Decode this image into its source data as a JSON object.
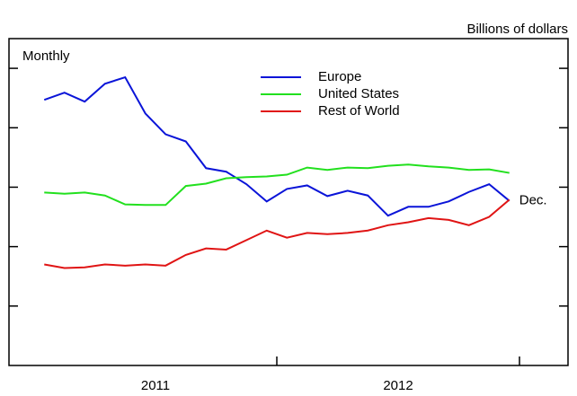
{
  "chart_data": {
    "type": "line",
    "unit_label": "Billions of dollars",
    "frequency_label": "Monthly",
    "categories": [
      null,
      null,
      null,
      null,
      null,
      null,
      null,
      null,
      null,
      null,
      null,
      null,
      null,
      null,
      null,
      null,
      null,
      null,
      null,
      null,
      null,
      null,
      null,
      null
    ],
    "year_labels": [
      "2011",
      "2012"
    ],
    "end_label": "Dec.",
    "series": [
      {
        "name": "Europe",
        "color": "#0a14d8",
        "values": [
          4.47,
          4.59,
          4.44,
          4.74,
          4.85,
          4.24,
          3.89,
          3.77,
          3.32,
          3.26,
          3.05,
          2.76,
          2.97,
          3.03,
          2.85,
          2.94,
          2.86,
          2.52,
          2.67,
          2.67,
          2.76,
          2.92,
          3.05,
          2.77
        ]
      },
      {
        "name": "United States",
        "color": "#22e01e",
        "values": [
          2.91,
          2.89,
          2.91,
          2.86,
          2.71,
          2.7,
          2.7,
          3.02,
          3.06,
          3.15,
          3.17,
          3.18,
          3.21,
          3.33,
          3.29,
          3.33,
          3.32,
          3.36,
          3.38,
          3.35,
          3.33,
          3.29,
          3.3,
          3.24
        ]
      },
      {
        "name": "Rest of World",
        "color": "#e01414",
        "values": [
          1.7,
          1.64,
          1.65,
          1.7,
          1.68,
          1.7,
          1.68,
          1.86,
          1.97,
          1.95,
          2.11,
          2.27,
          2.15,
          2.23,
          2.21,
          2.23,
          2.27,
          2.36,
          2.41,
          2.48,
          2.45,
          2.36,
          2.5,
          2.79
        ]
      }
    ],
    "ylim": [
      0,
      5.5
    ],
    "yticks": [
      1,
      2,
      3,
      4,
      5
    ]
  }
}
